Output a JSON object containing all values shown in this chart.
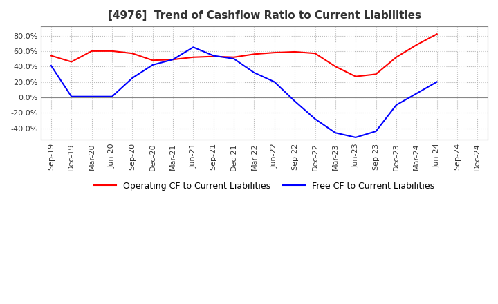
{
  "title": "[4976]  Trend of Cashflow Ratio to Current Liabilities",
  "x_labels": [
    "Sep-19",
    "Dec-19",
    "Mar-20",
    "Jun-20",
    "Sep-20",
    "Dec-20",
    "Mar-21",
    "Jun-21",
    "Sep-21",
    "Dec-21",
    "Mar-22",
    "Jun-22",
    "Sep-22",
    "Dec-22",
    "Mar-23",
    "Jun-23",
    "Sep-23",
    "Dec-23",
    "Mar-24",
    "Jun-24",
    "Sep-24",
    "Dec-24"
  ],
  "operating_cf": [
    0.54,
    0.46,
    0.6,
    0.6,
    0.57,
    0.48,
    0.49,
    0.52,
    0.53,
    0.52,
    0.56,
    0.58,
    0.59,
    0.57,
    0.4,
    0.27,
    0.3,
    0.52,
    0.68,
    0.82,
    null,
    null
  ],
  "free_cf": [
    0.41,
    0.01,
    0.01,
    0.01,
    0.25,
    0.42,
    0.49,
    0.65,
    0.54,
    0.5,
    0.32,
    0.2,
    -0.05,
    -0.28,
    -0.46,
    -0.52,
    -0.44,
    -0.1,
    0.05,
    0.2,
    null,
    null
  ],
  "operating_color": "#ff0000",
  "free_color": "#0000ff",
  "ylim_min": -0.55,
  "ylim_max": 0.92,
  "yticks": [
    -0.4,
    -0.2,
    0.0,
    0.2,
    0.4,
    0.6,
    0.8
  ],
  "grid_color": "#bbbbbb",
  "background_color": "#ffffff",
  "title_fontsize": 11,
  "tick_fontsize": 8,
  "legend_fontsize": 9
}
